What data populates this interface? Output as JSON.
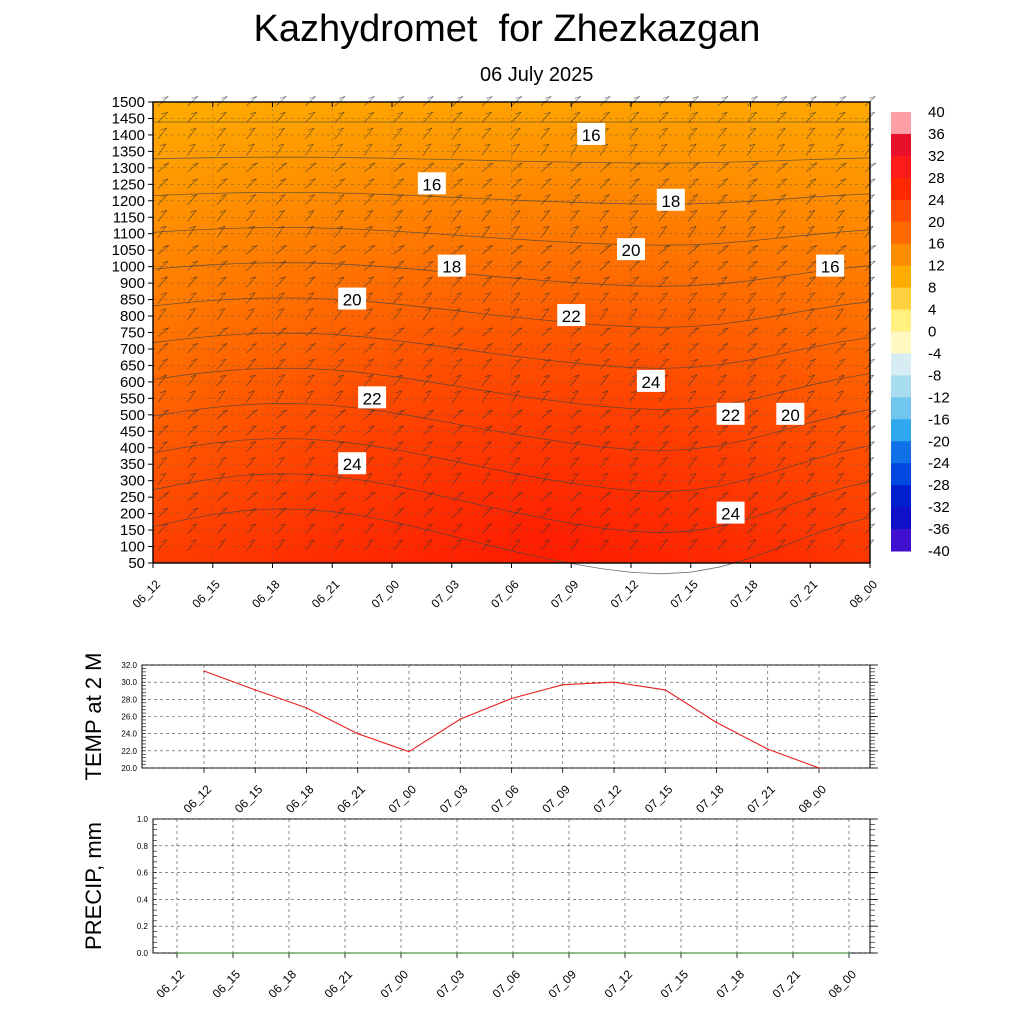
{
  "title": "Kazhydromet  for Zhezkazgan",
  "subtitle": "06 July 2025",
  "chart_data": [
    {
      "type": "heatmap",
      "y_ticks": [
        50,
        100,
        150,
        200,
        250,
        300,
        350,
        400,
        450,
        500,
        550,
        600,
        650,
        700,
        750,
        800,
        850,
        900,
        1000,
        1050,
        1100,
        1150,
        1200,
        1250,
        1300,
        1350,
        1400,
        1450,
        1500
      ],
      "x_ticks": [
        "06_12",
        "06_15",
        "06_18",
        "06_21",
        "07_00",
        "07_03",
        "07_06",
        "07_09",
        "07_12",
        "07_15",
        "07_18",
        "07_21",
        "08_00"
      ],
      "colorbar": {
        "levels": [
          40,
          36,
          32,
          28,
          24,
          20,
          16,
          12,
          8,
          4,
          0,
          -4,
          -8,
          -12,
          -16,
          -20,
          -24,
          -28,
          -32,
          -36,
          -40
        ],
        "colors": [
          "#ff9ea6",
          "#e8102a",
          "#ff1a1a",
          "#ff2800",
          "#ff4c00",
          "#ff6a00",
          "#ff8c00",
          "#ffac00",
          "#ffd040",
          "#fff080",
          "#fff8c0",
          "#d8ecf4",
          "#a8dcef",
          "#70c6ef",
          "#30a8f0",
          "#1070e8",
          "#0048e0",
          "#0020d0",
          "#1010c8",
          "#4010d0",
          "#8030e0"
        ]
      },
      "contour_labels": [
        {
          "text": "16",
          "x": "07_10",
          "y": 1400
        },
        {
          "text": "16",
          "x": "07_02",
          "y": 1230
        },
        {
          "text": "18",
          "x": "07_14",
          "y": 1190
        },
        {
          "text": "18",
          "x": "07_03",
          "y": 1000
        },
        {
          "text": "20",
          "x": "07_12",
          "y": 1030
        },
        {
          "text": "16",
          "x": "07_22",
          "y": 980
        },
        {
          "text": "20",
          "x": "06_22",
          "y": 850
        },
        {
          "text": "22",
          "x": "07_09",
          "y": 790
        },
        {
          "text": "24",
          "x": "07_13",
          "y": 600
        },
        {
          "text": "22",
          "x": "06_23",
          "y": 530
        },
        {
          "text": "22",
          "x": "07_17",
          "y": 480
        },
        {
          "text": "20",
          "x": "07_20",
          "y": 480
        },
        {
          "text": "24",
          "x": "06_22",
          "y": 330
        },
        {
          "text": "24",
          "x": "07_17",
          "y": 180
        }
      ]
    },
    {
      "type": "line",
      "ylabel": "TEMP at 2 M",
      "ylim": [
        20.0,
        32.0
      ],
      "y_ticks": [
        "20.0",
        "22.0",
        "24.0",
        "26.0",
        "28.0",
        "30.0",
        "32.0"
      ],
      "x": [
        "06_12",
        "06_15",
        "06_18",
        "06_21",
        "07_00",
        "07_03",
        "07_06",
        "07_09",
        "07_12",
        "07_15",
        "07_18",
        "07_21",
        "08_00"
      ],
      "values": [
        31.3,
        29.1,
        27.0,
        24.0,
        21.9,
        25.7,
        28.1,
        29.7,
        30.0,
        29.1,
        25.3,
        22.2,
        20.0
      ],
      "color": "#e82020"
    },
    {
      "type": "line",
      "ylabel": "PRECIP, mm",
      "ylim": [
        0.0,
        1.0
      ],
      "y_ticks": [
        "0.0",
        "0.2",
        "0.4",
        "0.6",
        "0.8",
        "1.0"
      ],
      "x": [
        "06_12",
        "06_15",
        "06_18",
        "06_21",
        "07_00",
        "07_03",
        "07_06",
        "07_09",
        "07_12",
        "07_15",
        "07_18",
        "07_21",
        "08_00"
      ],
      "values": [
        0,
        0,
        0,
        0,
        0,
        0,
        0,
        0,
        0,
        0,
        0,
        0,
        0
      ],
      "color": "#208020"
    }
  ]
}
